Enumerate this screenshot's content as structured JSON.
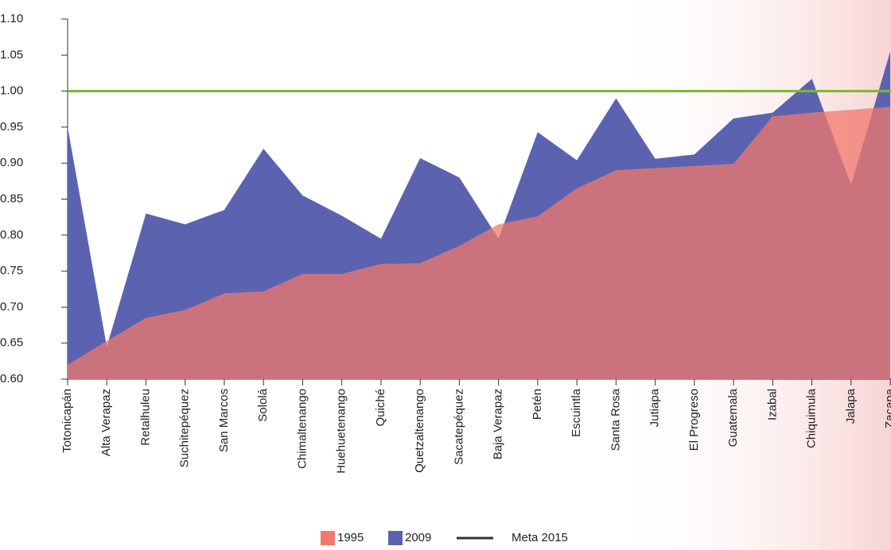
{
  "chart_data": {
    "type": "area",
    "categories": [
      "Totonicapán",
      "Alta Verapaz",
      "Retalhuleu",
      "Suchitepéquez",
      "San Marcos",
      "Sololá",
      "Chimaltenango",
      "Huehuetenango",
      "Quiché",
      "Quetzaltenango",
      "Sacatepéquez",
      "Baja Verapaz",
      "Petén",
      "Escuintla",
      "Santa Rosa",
      "Jutiapa",
      "El Progreso",
      "Guatemala",
      "Izabal",
      "Chiquimula",
      "Jalapa",
      "Zacapa"
    ],
    "series": [
      {
        "name": "2009",
        "color": "#5b63b0",
        "values": [
          0.95,
          0.645,
          0.83,
          0.815,
          0.835,
          0.92,
          0.855,
          0.827,
          0.795,
          0.907,
          0.88,
          0.795,
          0.943,
          0.904,
          0.99,
          0.906,
          0.912,
          0.962,
          0.97,
          1.017,
          0.87,
          1.055
        ]
      },
      {
        "name": "1995",
        "color": "#f0786c",
        "values": [
          0.62,
          0.653,
          0.685,
          0.696,
          0.719,
          0.722,
          0.746,
          0.746,
          0.76,
          0.761,
          0.785,
          0.815,
          0.826,
          0.865,
          0.89,
          0.893,
          0.896,
          0.899,
          0.965,
          0.97,
          0.974,
          0.978
        ]
      }
    ],
    "target": {
      "name": "Meta 2015",
      "value": 1.0,
      "color": "#7ab929",
      "legend_color": "#333333"
    },
    "ylim": [
      0.6,
      1.1
    ],
    "yticks": [
      {
        "value": 0.6,
        "label": "0.60"
      },
      {
        "value": 0.65,
        "label": "0.65"
      },
      {
        "value": 0.7,
        "label": "0.70"
      },
      {
        "value": 0.75,
        "label": "0.75"
      },
      {
        "value": 0.8,
        "label": "0.80"
      },
      {
        "value": 0.85,
        "label": "0.85"
      },
      {
        "value": 0.9,
        "label": "0.90"
      },
      {
        "value": 0.95,
        "label": "0.95"
      },
      {
        "value": 1.0,
        "label": "1.00"
      },
      {
        "value": 1.05,
        "label": "1.05"
      },
      {
        "value": 1.1,
        "label": "1.10"
      }
    ],
    "legend": "bottom"
  }
}
